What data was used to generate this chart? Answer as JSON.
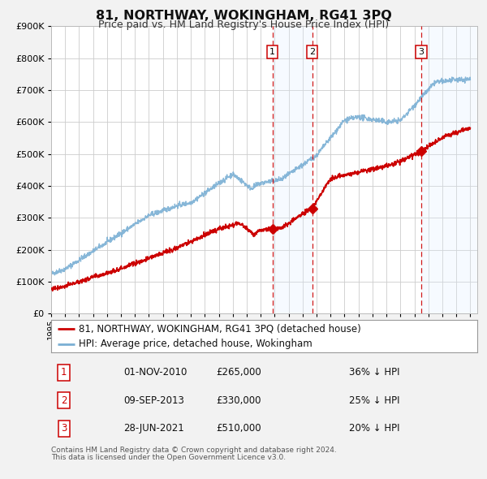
{
  "title": "81, NORTHWAY, WOKINGHAM, RG41 3PQ",
  "subtitle": "Price paid vs. HM Land Registry's House Price Index (HPI)",
  "legend_line1": "81, NORTHWAY, WOKINGHAM, RG41 3PQ (detached house)",
  "legend_line2": "HPI: Average price, detached house, Wokingham",
  "transactions": [
    {
      "num": 1,
      "date": "01-NOV-2010",
      "date_x": 2010.833,
      "price": 265000,
      "pct": "36%",
      "dir": "↓"
    },
    {
      "num": 2,
      "date": "09-SEP-2013",
      "date_x": 2013.692,
      "price": 330000,
      "pct": "25%",
      "dir": "↓"
    },
    {
      "num": 3,
      "date": "28-JUN-2021",
      "date_x": 2021.49,
      "price": 510000,
      "pct": "20%",
      "dir": "↓"
    }
  ],
  "footnote1": "Contains HM Land Registry data © Crown copyright and database right 2024.",
  "footnote2": "This data is licensed under the Open Government Licence v3.0.",
  "red_line_color": "#cc0000",
  "blue_line_color": "#7aafd4",
  "blue_shade_color": "#ddeeff",
  "background_color": "#f2f2f2",
  "plot_bg_color": "#ffffff",
  "grid_color": "#cccccc",
  "xmin": 1995.0,
  "xmax": 2025.5,
  "ymin": 0,
  "ymax": 900000,
  "yticks": [
    0,
    100000,
    200000,
    300000,
    400000,
    500000,
    600000,
    700000,
    800000,
    900000
  ]
}
